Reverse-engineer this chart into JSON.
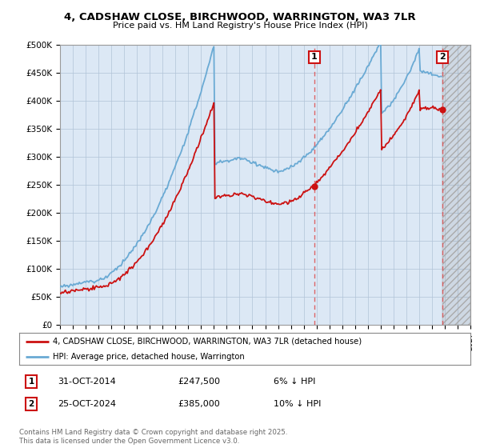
{
  "title_line1": "4, CADSHAW CLOSE, BIRCHWOOD, WARRINGTON, WA3 7LR",
  "title_line2": "Price paid vs. HM Land Registry's House Price Index (HPI)",
  "background_color": "#ffffff",
  "plot_bg_color": "#dce8f5",
  "grid_color": "#b0c4d8",
  "hpi_color": "#6aaad4",
  "price_color": "#cc1111",
  "sale1_year": 2014.83,
  "sale2_year": 2024.81,
  "sale1_price": 247500,
  "sale2_price": 385000,
  "sale1_date": "31-OCT-2014",
  "sale2_date": "25-OCT-2024",
  "sale1_label": "6% ↓ HPI",
  "sale2_label": "10% ↓ HPI",
  "legend_label1": "4, CADSHAW CLOSE, BIRCHWOOD, WARRINGTON, WA3 7LR (detached house)",
  "legend_label2": "HPI: Average price, detached house, Warrington",
  "footer": "Contains HM Land Registry data © Crown copyright and database right 2025.\nThis data is licensed under the Open Government Licence v3.0.",
  "xmin": 1995,
  "xmax": 2027,
  "ymin": 0,
  "ymax": 500000,
  "yticks": [
    0,
    50000,
    100000,
    150000,
    200000,
    250000,
    300000,
    350000,
    400000,
    450000,
    500000
  ]
}
